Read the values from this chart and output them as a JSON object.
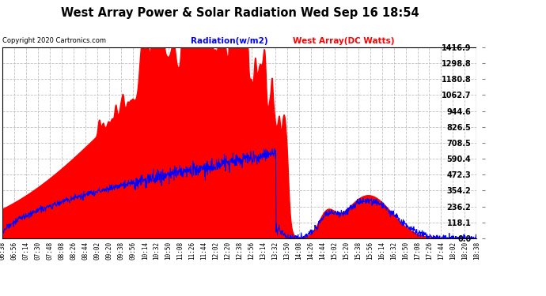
{
  "title": "West Array Power & Solar Radiation Wed Sep 16 18:54",
  "copyright": "Copyright 2020 Cartronics.com",
  "legend_radiation": "Radiation(w/m2)",
  "legend_west": "West Array(DC Watts)",
  "ymax": 1416.9,
  "ymin": 0.0,
  "yticks": [
    0.0,
    118.1,
    236.2,
    354.2,
    472.3,
    590.4,
    708.5,
    826.5,
    944.6,
    1062.7,
    1180.8,
    1298.8,
    1416.9
  ],
  "background_color": "#ffffff",
  "grid_color": "#c0c0c0",
  "red_color": "#ff0000",
  "blue_color": "#0000ff",
  "title_color": "#000000",
  "copyright_color": "#000000",
  "radiation_color": "#0000ff",
  "west_array_color": "#ff0000",
  "time_labels": [
    "06:38",
    "06:56",
    "07:14",
    "07:30",
    "07:48",
    "08:08",
    "08:26",
    "08:44",
    "09:02",
    "09:20",
    "09:38",
    "09:56",
    "10:14",
    "10:32",
    "10:50",
    "11:08",
    "11:26",
    "11:44",
    "12:02",
    "12:20",
    "12:38",
    "12:56",
    "13:14",
    "13:32",
    "13:50",
    "14:08",
    "14:26",
    "14:44",
    "15:02",
    "15:20",
    "15:38",
    "15:56",
    "16:14",
    "16:32",
    "16:50",
    "17:08",
    "17:26",
    "17:44",
    "18:02",
    "18:20",
    "18:38"
  ]
}
